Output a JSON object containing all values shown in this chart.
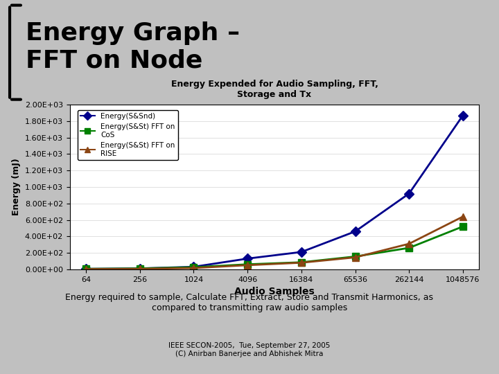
{
  "title": "Energy Graph –\nFFT on Node",
  "chart_title": "Energy Expended for Audio Sampling, FFT,\nStorage and Tx",
  "xlabel": "Audio Samples",
  "ylabel": "Energy (mJ)",
  "x_labels": [
    "64",
    "256",
    "1024",
    "4096",
    "16384",
    "65536",
    "262144",
    "1048576"
  ],
  "x_values": [
    64,
    256,
    1024,
    4096,
    16384,
    65536,
    262144,
    1048576
  ],
  "series": [
    {
      "label": "Energy(S&Snd)",
      "color": "#00008B",
      "marker": "D",
      "markersize": 7,
      "linewidth": 2,
      "values": [
        5,
        10,
        30,
        130,
        210,
        460,
        920,
        1870
      ]
    },
    {
      "label": "Energy(S&St) FFT on\nCoS",
      "color": "#008000",
      "marker": "s",
      "markersize": 7,
      "linewidth": 2,
      "values": [
        5,
        10,
        25,
        60,
        85,
        155,
        260,
        520
      ]
    },
    {
      "label": "Energy(S&St) FFT on\nRISE",
      "color": "#8B4513",
      "marker": "^",
      "markersize": 7,
      "linewidth": 2,
      "values": [
        2,
        5,
        15,
        50,
        80,
        145,
        310,
        640
      ]
    }
  ],
  "ylim": [
    0,
    2000
  ],
  "yticks": [
    0,
    200,
    400,
    600,
    800,
    1000,
    1200,
    1400,
    1600,
    1800,
    2000
  ],
  "ytick_labels": [
    "0.00E+00",
    "2.00E+02",
    "4.00E+02",
    "6.00E+02",
    "8.00E+02",
    "1.00E+03",
    "1.20E+03",
    "1.40E+03",
    "1.60E+03",
    "1.80E+03",
    "2.00E+03"
  ],
  "bg_color": "#f0f0f0",
  "slide_bg": "#d3d3d3",
  "caption": "Energy required to sample, Calculate FFT, Extract, Store and Transmit Harmonics, as\ncompared to transmitting raw audio samples",
  "footer_text": "IEEE SECON-2005,  Tue, September 27, 2005\n(C) Anirban Banerjee and Abhishek Mitra"
}
